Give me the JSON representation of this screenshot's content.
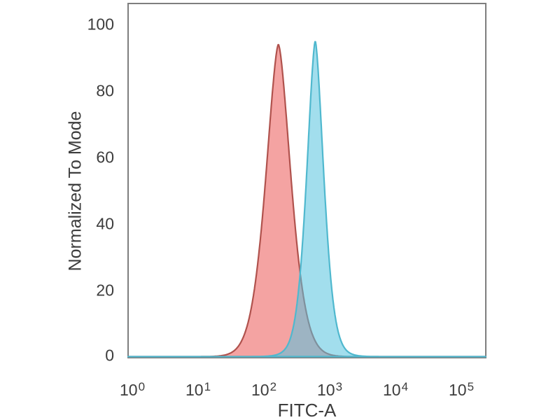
{
  "chart_data": {
    "type": "area",
    "subtype": "flow-cytometry-histogram-overlay",
    "title": "",
    "xlabel": "FITC-A",
    "ylabel": "Normalized To Mode",
    "x_scale": "log10",
    "xlim_log": [
      -0.07,
      5.38
    ],
    "ylim": [
      0,
      107
    ],
    "grid": "off",
    "legend": "none",
    "frame_color": "#7e7e7e",
    "text_color": "#3d3d3d",
    "background_color": "#ffffff",
    "y_ticks": [
      "100",
      "80",
      "60",
      "40",
      "20",
      "0"
    ],
    "x_ticks": [
      {
        "base": "10",
        "exp": "0"
      },
      {
        "base": "10",
        "exp": "1"
      },
      {
        "base": "10",
        "exp": "2"
      },
      {
        "base": "10",
        "exp": "3"
      },
      {
        "base": "10",
        "exp": "4"
      },
      {
        "base": "10",
        "exp": "5"
      }
    ],
    "series": [
      {
        "id": "red",
        "label": "red histogram",
        "fill": "#f4a3a2",
        "fill_opacity": 1,
        "stroke": "#b0524d",
        "stroke_width": 2.2,
        "peak_log": 2.22,
        "peak_x_value": 166,
        "peak_value": 94,
        "sigma": 0.175,
        "shape_power": 1.6,
        "tail_frac": 0.05,
        "tail_sigma": 0.33,
        "approx_points_logx_value": [
          [
            1.5,
            0
          ],
          [
            1.7,
            1
          ],
          [
            1.85,
            4
          ],
          [
            1.95,
            14
          ],
          [
            2.0,
            27
          ],
          [
            2.05,
            44
          ],
          [
            2.1,
            62
          ],
          [
            2.15,
            78
          ],
          [
            2.2,
            92
          ],
          [
            2.22,
            94
          ],
          [
            2.27,
            86
          ],
          [
            2.32,
            70
          ],
          [
            2.37,
            52
          ],
          [
            2.42,
            35
          ],
          [
            2.47,
            22
          ],
          [
            2.52,
            13
          ],
          [
            2.6,
            5
          ],
          [
            2.7,
            2
          ],
          [
            2.9,
            0
          ]
        ]
      },
      {
        "id": "cyan",
        "label": "cyan histogram",
        "fill": "#56c2de",
        "fill_opacity": 0.55,
        "stroke": "#4fb8ce",
        "stroke_width": 2.2,
        "peak_log": 2.78,
        "peak_x_value": 600,
        "peak_value": 95,
        "sigma": 0.12,
        "shape_power": 1.6,
        "tail_frac": 0.04,
        "tail_sigma": 0.28,
        "approx_points_logx_value": [
          [
            2.2,
            0
          ],
          [
            2.35,
            1
          ],
          [
            2.45,
            3
          ],
          [
            2.55,
            10
          ],
          [
            2.6,
            20
          ],
          [
            2.65,
            37
          ],
          [
            2.7,
            58
          ],
          [
            2.75,
            80
          ],
          [
            2.78,
            95
          ],
          [
            2.82,
            88
          ],
          [
            2.87,
            66
          ],
          [
            2.92,
            42
          ],
          [
            2.97,
            24
          ],
          [
            3.02,
            12
          ],
          [
            3.1,
            4
          ],
          [
            3.2,
            1
          ],
          [
            3.4,
            0
          ]
        ]
      }
    ]
  }
}
